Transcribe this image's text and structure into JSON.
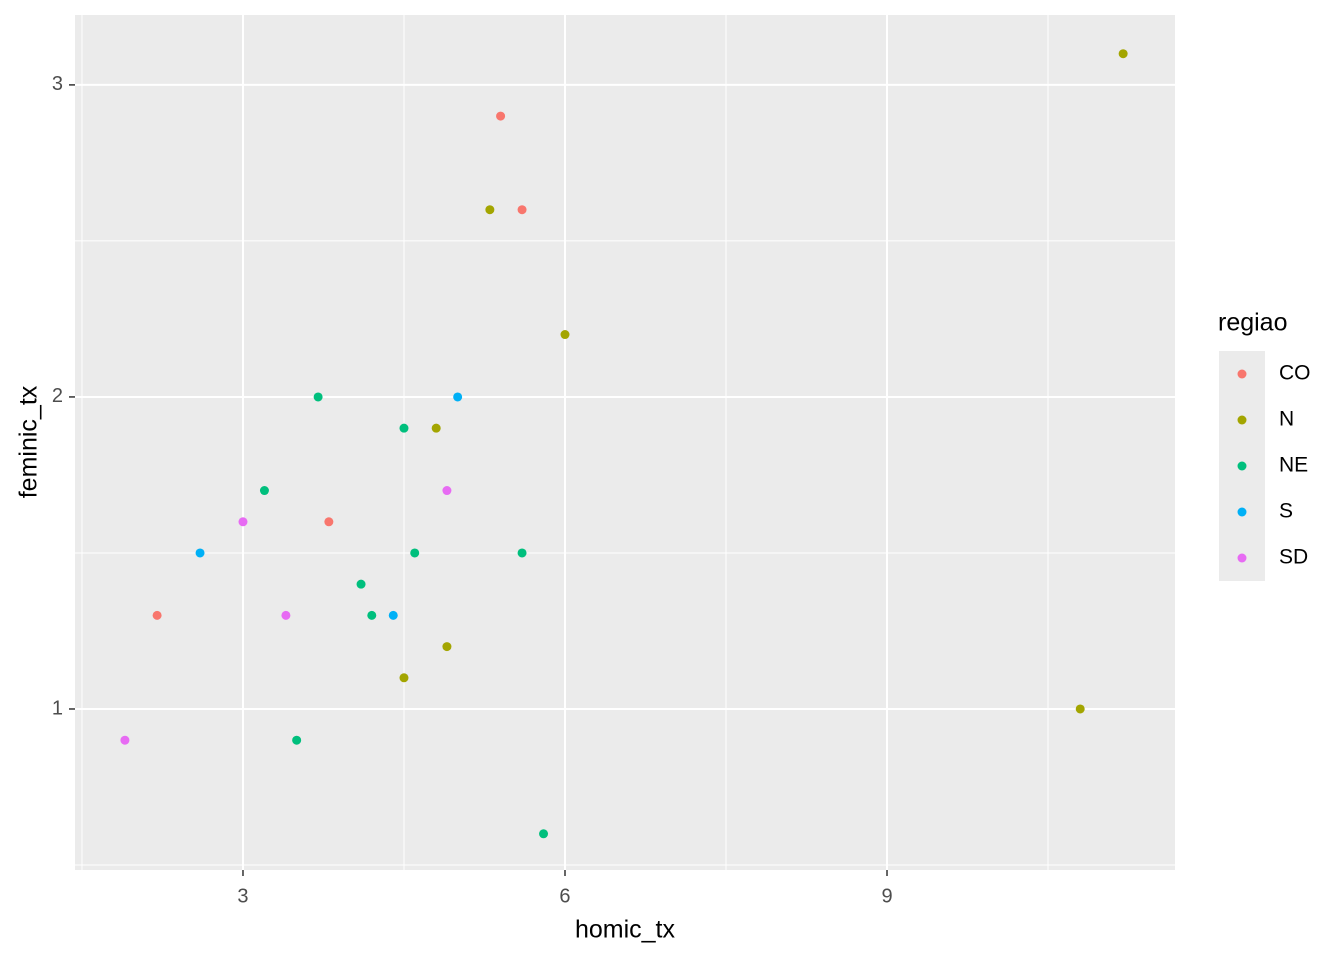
{
  "chart_data": {
    "type": "scatter",
    "xlabel": "homic_tx",
    "ylabel": "feminic_tx",
    "legend_title": "regiao",
    "xlim": [
      1.435,
      11.683
    ],
    "ylim": [
      0.484,
      3.224
    ],
    "xticks": [
      3,
      6,
      9
    ],
    "yticks": [
      1,
      2,
      3
    ],
    "xminor": [
      1.5,
      4.5,
      7.5,
      10.5
    ],
    "yminor": [
      0.5,
      1.5,
      2.5
    ],
    "grid": true,
    "legend": "right",
    "series": [
      {
        "name": "CO",
        "color": "#F8766D",
        "x": [
          5.4,
          5.6,
          3.8,
          2.2
        ],
        "values": [
          2.9,
          2.6,
          1.6,
          1.3
        ]
      },
      {
        "name": "N",
        "color": "#A3A500",
        "x": [
          11.2,
          5.3,
          6.0,
          4.8,
          4.9,
          4.5,
          10.8
        ],
        "values": [
          3.1,
          2.6,
          2.2,
          1.9,
          1.2,
          1.1,
          1.0
        ]
      },
      {
        "name": "NE",
        "color": "#00BF7D",
        "x": [
          3.7,
          4.5,
          3.2,
          4.6,
          5.6,
          4.1,
          4.2,
          3.5,
          5.8
        ],
        "values": [
          2.0,
          1.9,
          1.7,
          1.5,
          1.5,
          1.4,
          1.3,
          0.9,
          0.6
        ]
      },
      {
        "name": "S",
        "color": "#00B0F6",
        "x": [
          5.0,
          2.6,
          4.4
        ],
        "values": [
          2.0,
          1.5,
          1.3
        ]
      },
      {
        "name": "SD",
        "color": "#E76BF3",
        "x": [
          4.9,
          3.0,
          3.4,
          1.9
        ],
        "values": [
          1.7,
          1.6,
          1.3,
          0.9
        ]
      }
    ]
  }
}
